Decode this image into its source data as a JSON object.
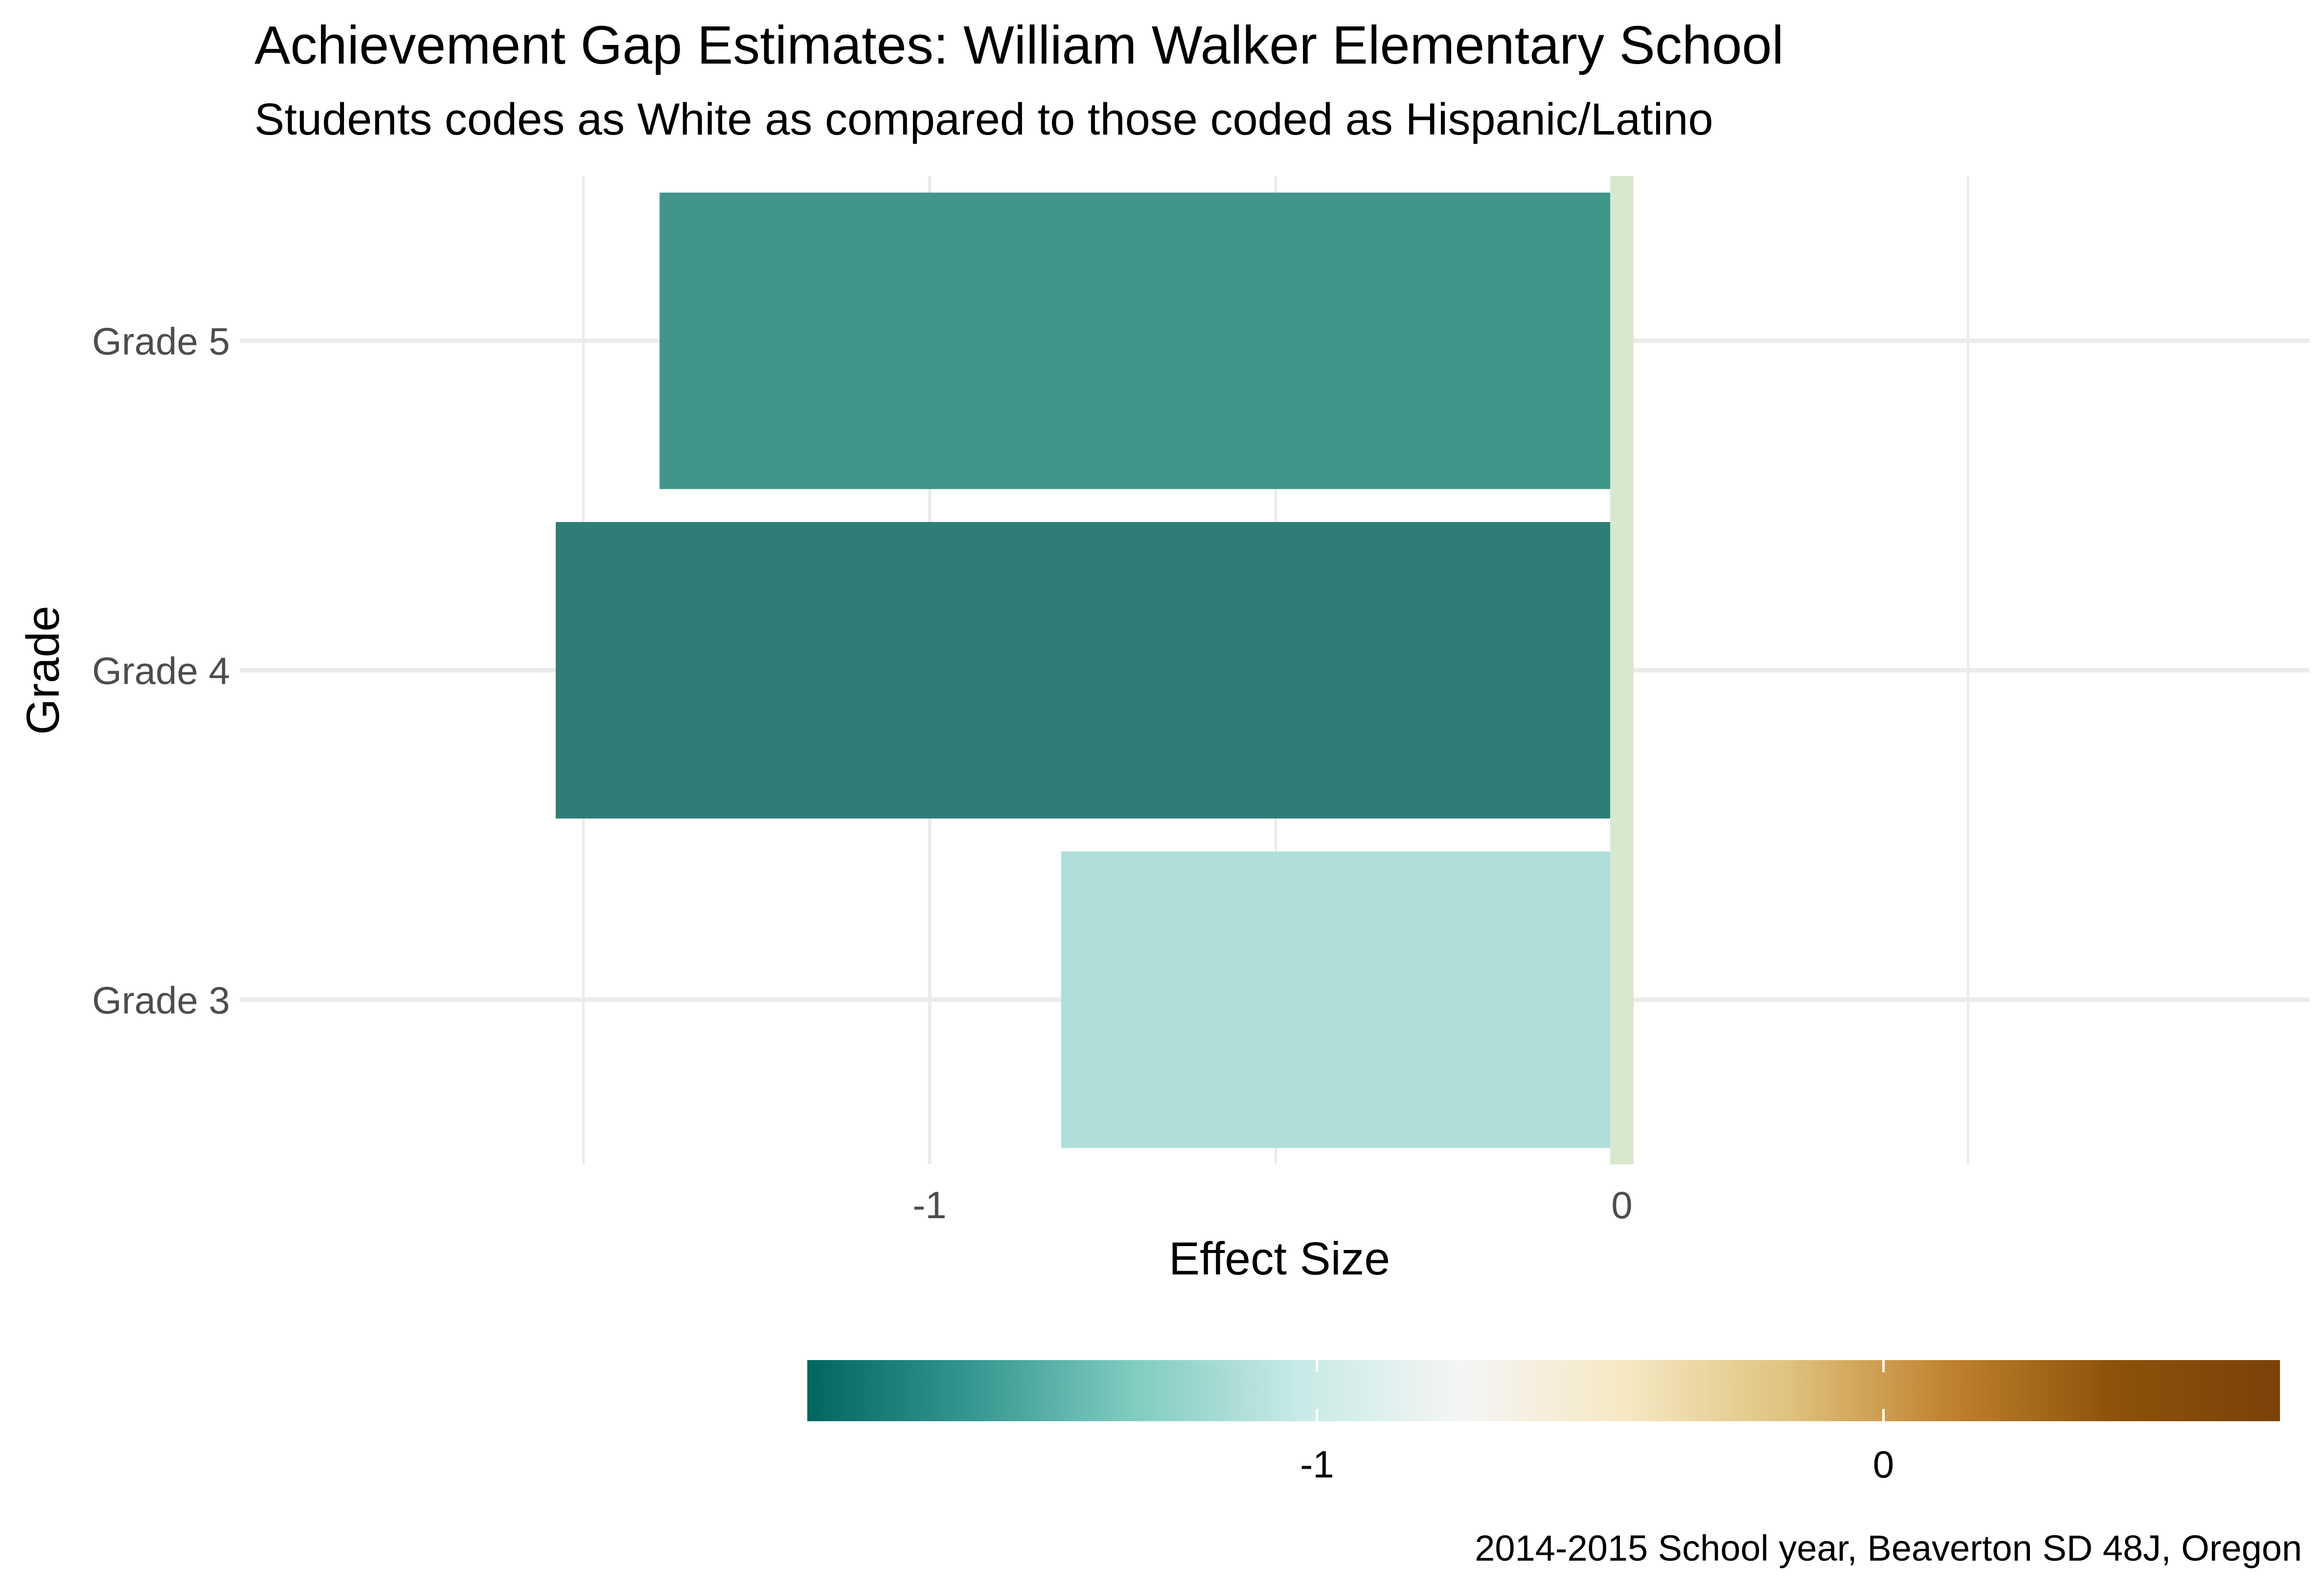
{
  "chart_data": {
    "type": "bar",
    "orientation": "horizontal",
    "title": "Achievement Gap Estimates: William Walker Elementary School",
    "subtitle": "Students codes as White as compared to those coded as Hispanic/Latino",
    "xlabel": "Effect Size",
    "ylabel": "Grade",
    "caption": "2014-2015 School year, Beaverton SD 48J, Oregon",
    "categories": [
      "Grade 3",
      "Grade 4",
      "Grade 5"
    ],
    "values": [
      -0.81,
      -1.54,
      -1.39
    ],
    "bar_colors": [
      "#AEDFD8",
      "#2E7D76",
      "#41968A"
    ],
    "xlim": [
      -1.9,
      1.0
    ],
    "x_ticks": [
      -1,
      0
    ],
    "x_tick_labels": [
      "-1",
      "0"
    ],
    "grid": true,
    "reference_line": {
      "x": 0,
      "color": "#D8E8CE"
    },
    "legend": {
      "position": "bottom",
      "type": "colorbar",
      "range": [
        -1.9,
        0.7
      ],
      "ticks": [
        -1,
        0
      ],
      "tick_labels": [
        "-1",
        "0"
      ],
      "colors": [
        "#01665E",
        "#35978F",
        "#80CDC1",
        "#C7EAE5",
        "#F5F5F5",
        "#F6E8C3",
        "#DFC27D",
        "#BF812D",
        "#8C510A",
        "#7A4209"
      ]
    }
  }
}
